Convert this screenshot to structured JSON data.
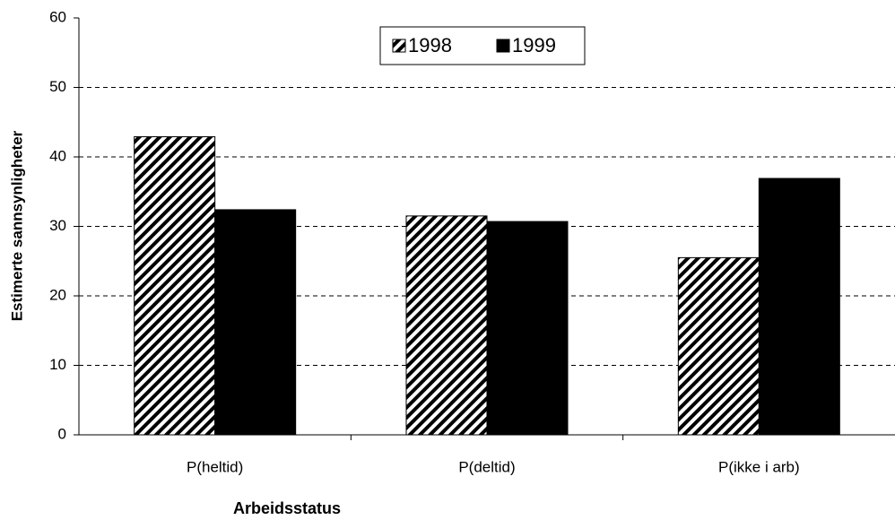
{
  "chart_data": {
    "type": "bar",
    "x_label": "Arbeidsstatus",
    "y_label": "Estimerte sannsynligheter",
    "categories": [
      "P(heltid)",
      "P(deltid)",
      "P(ikke i arb)"
    ],
    "series": [
      {
        "name": "1998",
        "color": "#000000",
        "pattern": "hatch",
        "values": [
          42.9,
          31.5,
          25.5
        ]
      },
      {
        "name": "1999",
        "color": "#000000",
        "pattern": "solid",
        "values": [
          32.4,
          30.7,
          36.9
        ]
      }
    ],
    "ylim": [
      0,
      60
    ],
    "yticks": [
      0,
      10,
      20,
      30,
      40,
      50,
      60
    ],
    "grid": true,
    "legend": "top"
  }
}
